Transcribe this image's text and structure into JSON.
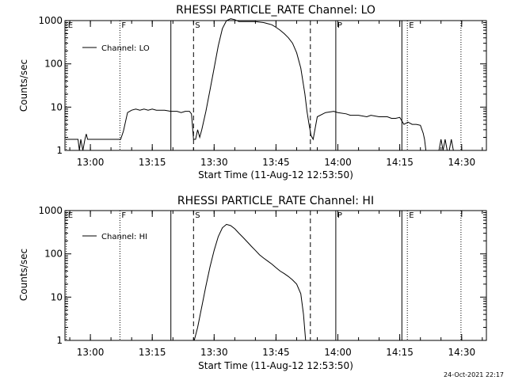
{
  "timestamp": "24-Oct-2021 22:17",
  "chart_data": [
    {
      "type": "line",
      "title": "RHESSI PARTICLE_RATE Channel: LO",
      "xlabel": "Start Time (11-Aug-12 12:53:50)",
      "ylabel": "Counts/sec",
      "xlim": [
        "12:53:50",
        "14:36:00"
      ],
      "ylim": [
        1,
        1000
      ],
      "yscale": "log",
      "xticks": [
        "13:00",
        "13:15",
        "13:30",
        "13:45",
        "14:00",
        "14:15",
        "14:30"
      ],
      "yticks": [
        "1",
        "10",
        "100",
        "1000"
      ],
      "legend": {
        "position": "top-left",
        "entries": [
          "Channel: LO"
        ]
      },
      "markers": [
        {
          "label": "E",
          "time": "12:54:10",
          "style": "dotted"
        },
        {
          "label": "F",
          "time": "13:07:10",
          "style": "dotted"
        },
        {
          "label": "",
          "time": "13:19:30",
          "style": "solid"
        },
        {
          "label": "S",
          "time": "13:25:00",
          "style": "dashed"
        },
        {
          "label": "",
          "time": "13:53:20",
          "style": "dashed"
        },
        {
          "label": "P",
          "time": "13:59:30",
          "style": "solid"
        },
        {
          "label": "",
          "time": "14:15:30",
          "style": "solid"
        },
        {
          "label": "E",
          "time": "14:16:50",
          "style": "dotted"
        },
        {
          "label": "",
          "time": "14:29:50",
          "style": "dotted"
        }
      ],
      "series": [
        {
          "name": "Channel: LO",
          "x": [
            "12:54:00",
            "12:56:00",
            "12:57:00",
            "12:57:20",
            "12:57:40",
            "12:58:10",
            "12:58:40",
            "12:59:00",
            "12:59:20",
            "13:00:00",
            "13:01:00",
            "13:02:00",
            "13:03:00",
            "13:04:00",
            "13:05:00",
            "13:06:00",
            "13:07:20",
            "13:08:00",
            "13:09:00",
            "13:10:00",
            "13:11:00",
            "13:12:00",
            "13:13:00",
            "13:14:00",
            "13:15:00",
            "13:16:00",
            "13:17:00",
            "13:18:00",
            "13:19:30",
            "13:20:00",
            "13:21:00",
            "13:22:00",
            "13:23:00",
            "13:23:30",
            "13:24:00",
            "13:24:30",
            "13:25:00",
            "13:25:30",
            "13:26:00",
            "13:26:30",
            "13:27:00",
            "13:28:00",
            "13:29:00",
            "13:30:00",
            "13:31:00",
            "13:32:00",
            "13:33:00",
            "13:34:00",
            "13:35:00",
            "13:36:00",
            "13:37:00",
            "13:38:00",
            "13:40:00",
            "13:42:00",
            "13:43:00",
            "13:44:00",
            "13:45:00",
            "13:46:00",
            "13:47:00",
            "13:48:00",
            "13:49:00",
            "13:50:00",
            "13:51:00",
            "13:52:00",
            "13:52:30",
            "13:53:00",
            "13:53:30",
            "13:54:00",
            "13:55:00",
            "13:57:00",
            "13:59:00",
            "14:00:00",
            "14:02:00",
            "14:03:00",
            "14:05:00",
            "14:07:00",
            "14:08:00",
            "14:10:00",
            "14:12:00",
            "14:13:00",
            "14:14:00",
            "14:15:00",
            "14:16:00",
            "14:17:00",
            "14:18:00",
            "14:19:00",
            "14:20:00",
            "14:20:40",
            "14:21:00",
            "14:21:20",
            "14:21:40",
            "14:22:00",
            "14:23:00",
            "14:24:00",
            "14:24:30",
            "14:25:00",
            "14:25:30",
            "14:26:00",
            "14:26:30",
            "14:27:00",
            "14:27:30",
            "14:28:00",
            "14:29:00"
          ],
          "y": [
            1.8,
            1.8,
            1.8,
            1,
            1.8,
            1,
            1.8,
            2.4,
            1.8,
            1.8,
            1.8,
            1.8,
            1.8,
            1.8,
            1.8,
            1.8,
            1.8,
            2.8,
            7.5,
            8.5,
            9,
            8.5,
            9,
            8.5,
            9,
            8.5,
            8.5,
            8.5,
            8,
            8,
            8,
            7.5,
            8,
            8,
            8,
            7,
            1.8,
            1.8,
            3,
            2,
            3,
            8,
            25,
            80,
            260,
            650,
            1000,
            1100,
            1050,
            950,
            950,
            950,
            950,
            900,
            850,
            800,
            700,
            600,
            500,
            400,
            300,
            180,
            80,
            20,
            8,
            4,
            2.2,
            1.8,
            6,
            7.5,
            8,
            7.5,
            7,
            6.5,
            6.5,
            6,
            6.5,
            6,
            6,
            5.5,
            5.5,
            5.8,
            4,
            4.5,
            4,
            4,
            3.8,
            2.5,
            1.8,
            1,
            1,
            1,
            1,
            1,
            1,
            1.8,
            1,
            1.8,
            1,
            1,
            1.8,
            1,
            1
          ]
        }
      ]
    },
    {
      "type": "line",
      "title": "RHESSI PARTICLE_RATE Channel: HI",
      "xlabel": "Start Time (11-Aug-12 12:53:50)",
      "ylabel": "Counts/sec",
      "xlim": [
        "12:53:50",
        "14:36:00"
      ],
      "ylim": [
        1,
        1000
      ],
      "yscale": "log",
      "xticks": [
        "13:00",
        "13:15",
        "13:30",
        "13:45",
        "14:00",
        "14:15",
        "14:30"
      ],
      "yticks": [
        "1",
        "10",
        "100",
        "1000"
      ],
      "legend": {
        "position": "top-left",
        "entries": [
          "Channel: HI"
        ]
      },
      "markers": [
        {
          "label": "E",
          "time": "12:54:10",
          "style": "dotted"
        },
        {
          "label": "F",
          "time": "13:07:10",
          "style": "dotted"
        },
        {
          "label": "",
          "time": "13:19:30",
          "style": "solid"
        },
        {
          "label": "S",
          "time": "13:25:00",
          "style": "dashed"
        },
        {
          "label": "",
          "time": "13:53:20",
          "style": "dashed"
        },
        {
          "label": "P",
          "time": "13:59:30",
          "style": "solid"
        },
        {
          "label": "",
          "time": "14:15:30",
          "style": "solid"
        },
        {
          "label": "E",
          "time": "14:16:50",
          "style": "dotted"
        },
        {
          "label": "",
          "time": "14:29:50",
          "style": "dotted"
        }
      ],
      "series": [
        {
          "name": "Channel: HI",
          "x": [
            "13:25:10",
            "13:26:00",
            "13:27:00",
            "13:28:00",
            "13:29:00",
            "13:30:00",
            "13:31:00",
            "13:32:00",
            "13:33:00",
            "13:34:00",
            "13:35:00",
            "13:36:00",
            "13:37:00",
            "13:38:00",
            "13:39:00",
            "13:40:00",
            "13:41:00",
            "13:42:00",
            "13:43:00",
            "13:44:00",
            "13:45:00",
            "13:46:00",
            "13:47:00",
            "13:48:00",
            "13:49:00",
            "13:50:00",
            "13:51:00",
            "13:51:40",
            "13:52:10"
          ],
          "y": [
            1,
            2,
            6,
            18,
            50,
            120,
            250,
            400,
            480,
            450,
            380,
            300,
            240,
            190,
            150,
            120,
            95,
            80,
            68,
            58,
            48,
            40,
            35,
            30,
            25,
            20,
            12,
            4,
            1
          ]
        }
      ]
    }
  ]
}
